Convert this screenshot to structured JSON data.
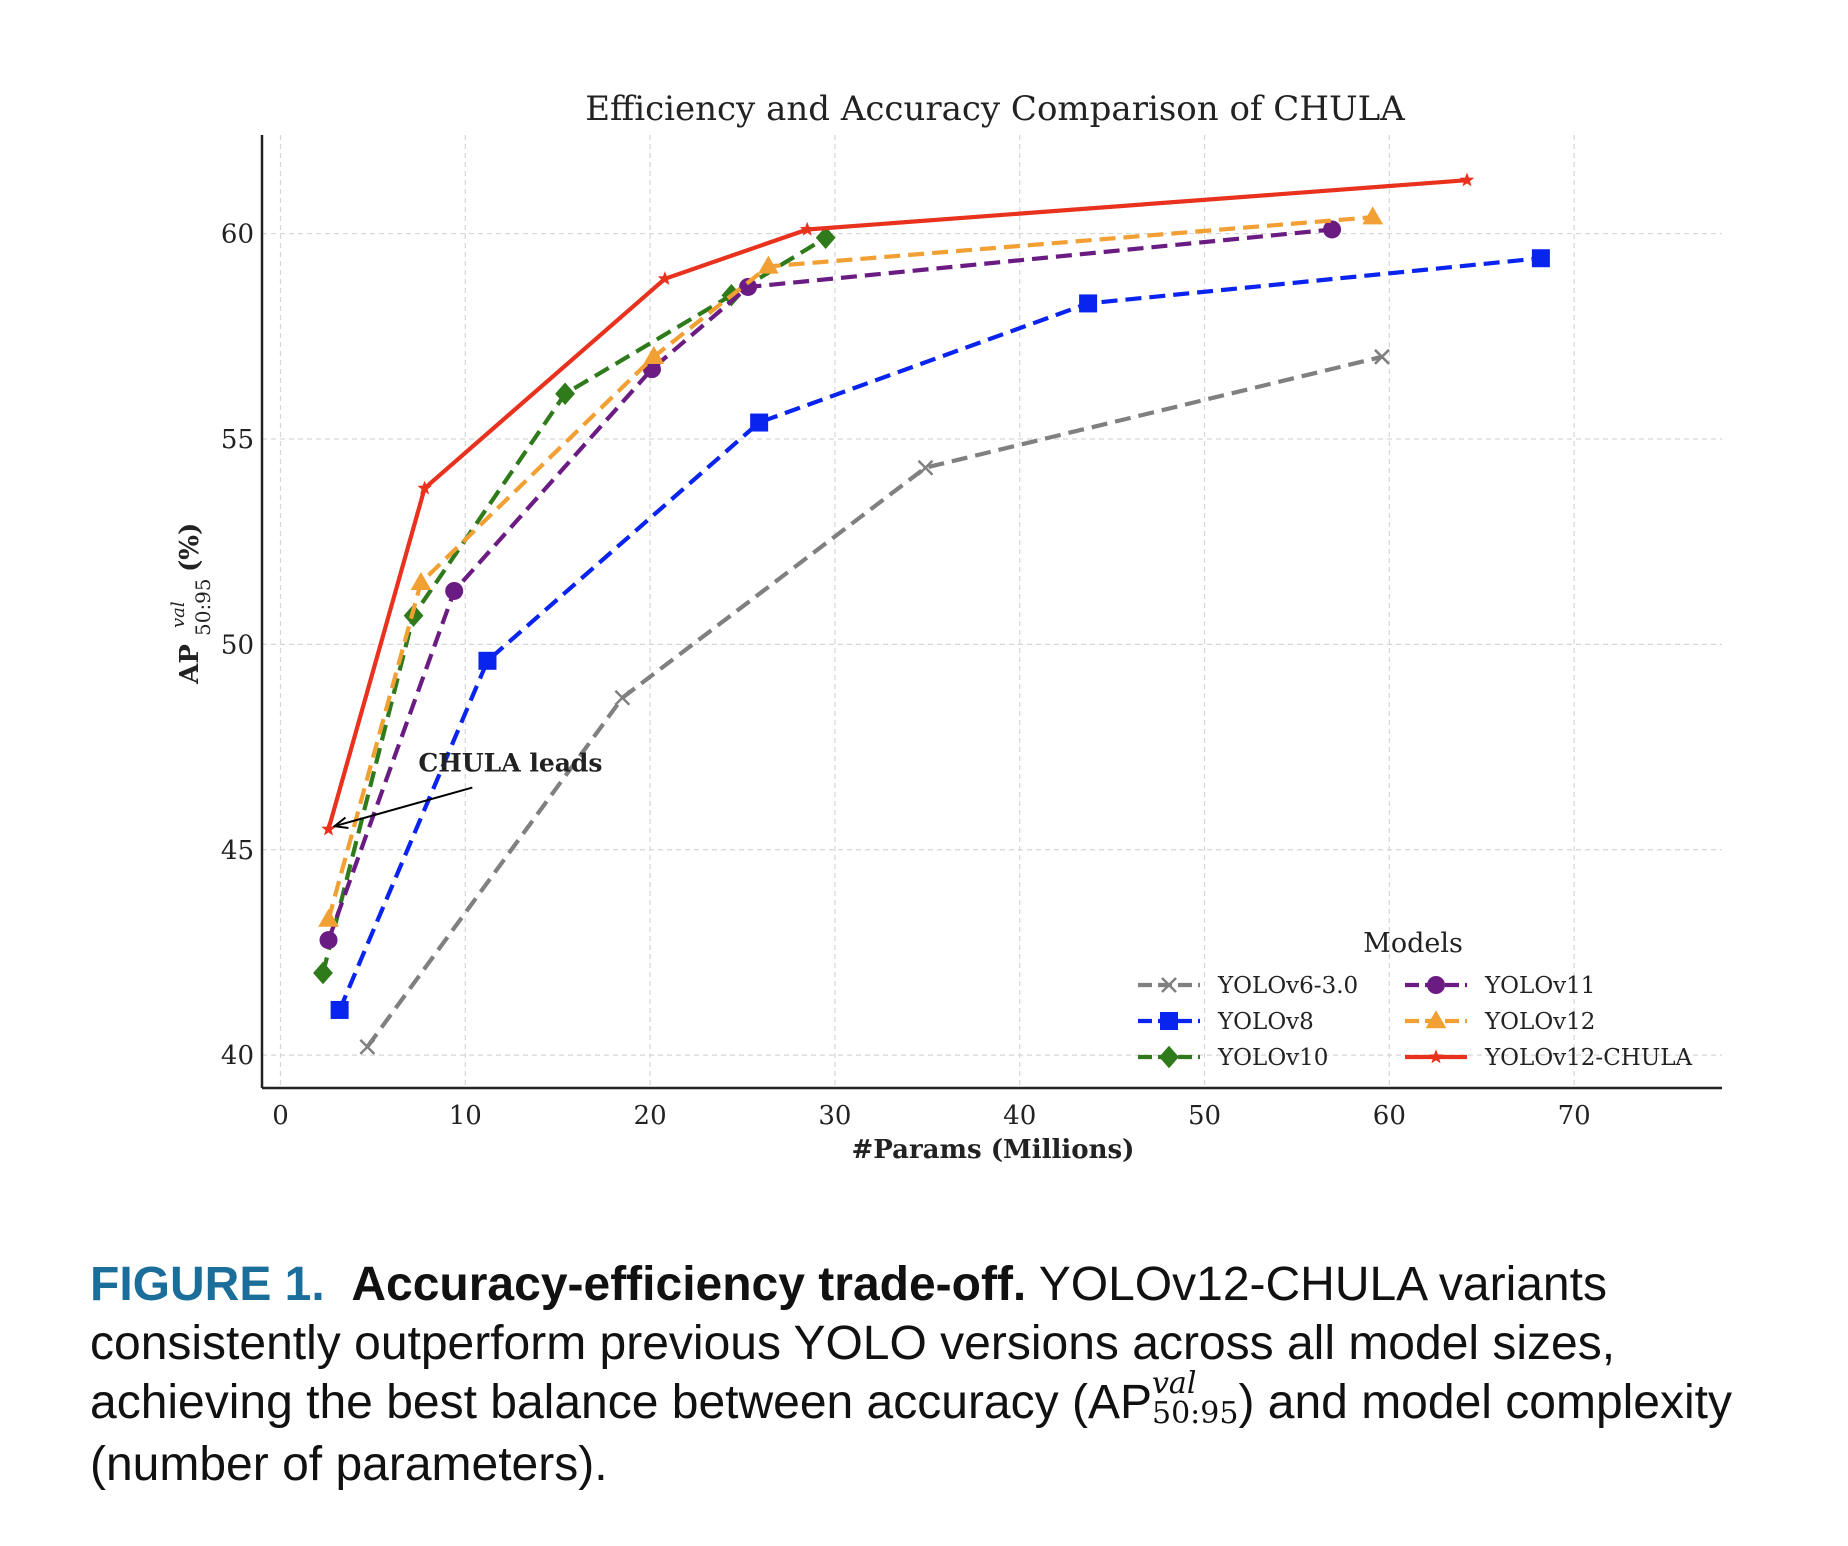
{
  "chart_data": {
    "type": "line",
    "title": "Efficiency and Accuracy Comparison of CHULA",
    "xlabel": "#Params (Millions)",
    "ylabel": {
      "base": "AP",
      "sup": "val",
      "sub": "50:95",
      "suffix": "(%)"
    },
    "xlim": [
      -1,
      78
    ],
    "ylim": [
      39.2,
      62.4
    ],
    "xticks": [
      0,
      10,
      20,
      30,
      40,
      50,
      60,
      70
    ],
    "yticks": [
      40,
      45,
      50,
      55,
      60
    ],
    "grid": true,
    "legend": {
      "title": "Models",
      "position": "lower-right",
      "columns": 2
    },
    "series": [
      {
        "name": "YOLOv6-3.0",
        "color": "#808080",
        "marker": "x",
        "dashed": true,
        "x": [
          4.7,
          18.5,
          34.9,
          59.6
        ],
        "y": [
          40.2,
          48.7,
          54.3,
          57.0
        ]
      },
      {
        "name": "YOLOv8",
        "color": "#0a24f0",
        "marker": "square",
        "dashed": true,
        "x": [
          3.2,
          11.2,
          25.9,
          43.7,
          68.2
        ],
        "y": [
          41.1,
          49.6,
          55.4,
          58.3,
          59.4
        ]
      },
      {
        "name": "YOLOv10",
        "color": "#2f7a1a",
        "marker": "diamond",
        "dashed": true,
        "x": [
          2.3,
          7.2,
          15.4,
          24.4,
          29.5
        ],
        "y": [
          42.0,
          50.7,
          56.1,
          58.5,
          59.9
        ]
      },
      {
        "name": "YOLOv11",
        "color": "#6b1c82",
        "marker": "circle",
        "dashed": true,
        "x": [
          2.6,
          9.4,
          20.1,
          25.3,
          56.9
        ],
        "y": [
          42.8,
          51.3,
          56.7,
          58.7,
          60.1
        ]
      },
      {
        "name": "YOLOv12",
        "color": "#f2a033",
        "marker": "triangle",
        "dashed": true,
        "x": [
          2.6,
          7.6,
          20.2,
          26.4,
          59.1
        ],
        "y": [
          43.3,
          51.5,
          57.0,
          59.2,
          60.4
        ]
      },
      {
        "name": "YOLOv12-CHULA",
        "color": "#e8321e",
        "marker": "star",
        "dashed": false,
        "x": [
          2.6,
          7.8,
          20.8,
          28.5,
          64.2
        ],
        "y": [
          45.5,
          53.8,
          58.9,
          60.1,
          61.3
        ]
      }
    ],
    "annotation": {
      "text": "CHULA leads",
      "target_x": 2.6,
      "target_y": 45.5,
      "text_x": 8.0,
      "text_y": 47.0
    }
  },
  "caption": {
    "figure_label": "FIGURE 1.",
    "bold_title": "Accuracy-efficiency trade-off.",
    "text_before": "YOLOv12-CHULA variants consistently outperform previous YOLO versions across all model sizes, achieving the best balance between accuracy (AP",
    "sup": "val",
    "sub": "50:95",
    "text_after": ") and model complexity (number of parameters)."
  }
}
